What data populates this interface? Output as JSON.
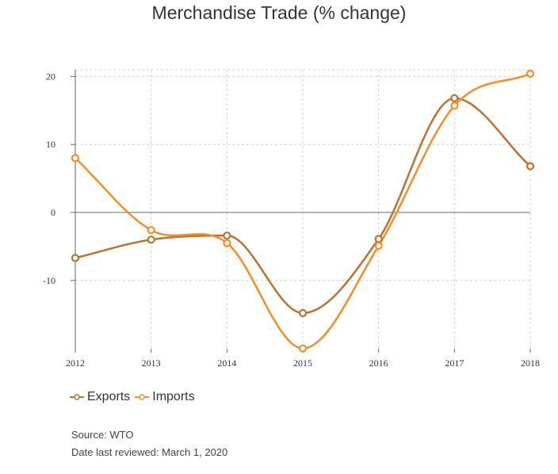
{
  "chart_data": {
    "type": "line",
    "title": "Merchandise Trade (% change)",
    "x": [
      "2012",
      "2013",
      "2014",
      "2015",
      "2016",
      "2017",
      "2018"
    ],
    "series": [
      {
        "name": "Exports",
        "color": "#b87333",
        "values": [
          -6.7,
          -4.0,
          -3.4,
          -14.8,
          -3.9,
          16.8,
          6.8
        ]
      },
      {
        "name": "Imports",
        "color": "#f28e2b",
        "values": [
          8.0,
          -2.6,
          -4.5,
          -20.0,
          -4.9,
          15.7,
          20.4
        ]
      }
    ],
    "yticks": [
      20,
      10,
      0,
      -10
    ],
    "ylim": [
      -20,
      21
    ],
    "grid": true,
    "legend": "bottom-left"
  },
  "footer": {
    "source": "Source: WTO",
    "reviewed": "Date last reviewed: March 1, 2020"
  }
}
